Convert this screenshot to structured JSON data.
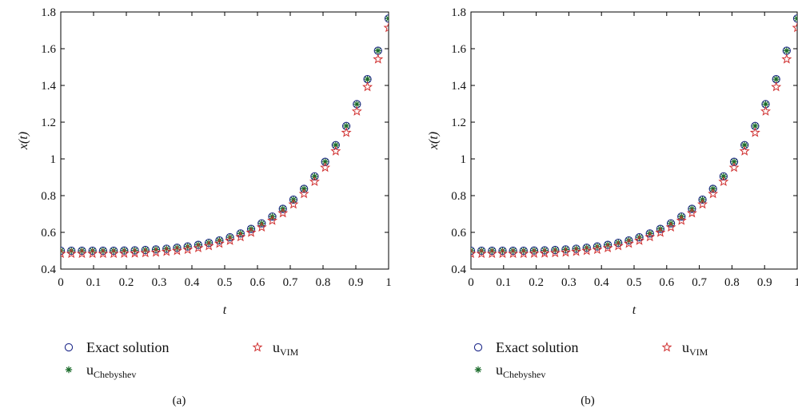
{
  "chart_data": [
    {
      "type": "scatter",
      "panel_label": "(a)",
      "xlabel": "t",
      "ylabel": "x(t)",
      "xlim": [
        0,
        1
      ],
      "ylim": [
        0.4,
        1.8
      ],
      "xticks": [
        0,
        0.1,
        0.2,
        0.3,
        0.4,
        0.5,
        0.6,
        0.7,
        0.8,
        0.9,
        1
      ],
      "xtick_labels": [
        "0",
        "0.1",
        "0.2",
        "0.3",
        "0.4",
        "0.5",
        "0.6",
        "0.7",
        "0.8",
        "0.9",
        "1"
      ],
      "yticks": [
        0.4,
        0.6,
        0.8,
        1,
        1.2,
        1.4,
        1.6,
        1.8
      ],
      "ytick_labels": [
        "0.4",
        "0.6",
        "0.8",
        "1",
        "1.2",
        "1.4",
        "1.6",
        "1.8"
      ],
      "grid": false,
      "legend_position": "below",
      "x": [
        0,
        0.0323,
        0.0645,
        0.0968,
        0.129,
        0.1613,
        0.1935,
        0.2258,
        0.2581,
        0.2903,
        0.3226,
        0.3548,
        0.3871,
        0.4194,
        0.4516,
        0.4839,
        0.5161,
        0.5484,
        0.5806,
        0.6129,
        0.6452,
        0.6774,
        0.7097,
        0.7419,
        0.7742,
        0.8065,
        0.8387,
        0.871,
        0.9032,
        0.9355,
        0.9677,
        1
      ],
      "series": [
        {
          "name": "Exact solution",
          "marker": "circle",
          "color": "#1f2a8a",
          "values": [
            0.5,
            0.5,
            0.5,
            0.5,
            0.5,
            0.5,
            0.501,
            0.502,
            0.504,
            0.507,
            0.511,
            0.516,
            0.523,
            0.532,
            0.543,
            0.556,
            0.573,
            0.594,
            0.619,
            0.649,
            0.686,
            0.728,
            0.778,
            0.837,
            0.905,
            0.984,
            1.075,
            1.179,
            1.298,
            1.434,
            1.589,
            1.764
          ]
        },
        {
          "name": "u_VIM",
          "marker": "star",
          "color": "#d03030",
          "values": [
            0.484,
            0.484,
            0.484,
            0.484,
            0.484,
            0.484,
            0.485,
            0.486,
            0.488,
            0.491,
            0.495,
            0.5,
            0.506,
            0.515,
            0.526,
            0.539,
            0.555,
            0.575,
            0.599,
            0.628,
            0.664,
            0.705,
            0.753,
            0.81,
            0.876,
            0.953,
            1.042,
            1.143,
            1.259,
            1.392,
            1.543,
            1.714
          ]
        },
        {
          "name": "u_Chebyshev",
          "marker": "asterisk",
          "color": "#1a6b2a",
          "values": [
            0.5,
            0.5,
            0.5,
            0.5,
            0.5,
            0.5,
            0.501,
            0.502,
            0.504,
            0.507,
            0.511,
            0.516,
            0.523,
            0.532,
            0.543,
            0.556,
            0.573,
            0.594,
            0.619,
            0.649,
            0.686,
            0.728,
            0.778,
            0.837,
            0.905,
            0.984,
            1.075,
            1.179,
            1.298,
            1.434,
            1.589,
            1.764
          ]
        }
      ]
    },
    {
      "type": "scatter",
      "panel_label": "(b)",
      "xlabel": "t",
      "ylabel": "x(t)",
      "xlim": [
        0,
        1
      ],
      "ylim": [
        0.4,
        1.8
      ],
      "xticks": [
        0,
        0.1,
        0.2,
        0.3,
        0.4,
        0.5,
        0.6,
        0.7,
        0.8,
        0.9,
        1
      ],
      "xtick_labels": [
        "0",
        "0.1",
        "0.2",
        "0.3",
        "0.4",
        "0.5",
        "0.6",
        "0.7",
        "0.8",
        "0.9",
        "1"
      ],
      "yticks": [
        0.4,
        0.6,
        0.8,
        1,
        1.2,
        1.4,
        1.6,
        1.8
      ],
      "ytick_labels": [
        "0.4",
        "0.6",
        "0.8",
        "1",
        "1.2",
        "1.4",
        "1.6",
        "1.8"
      ],
      "grid": false,
      "legend_position": "below",
      "x": [
        0,
        0.0323,
        0.0645,
        0.0968,
        0.129,
        0.1613,
        0.1935,
        0.2258,
        0.2581,
        0.2903,
        0.3226,
        0.3548,
        0.3871,
        0.4194,
        0.4516,
        0.4839,
        0.5161,
        0.5484,
        0.5806,
        0.6129,
        0.6452,
        0.6774,
        0.7097,
        0.7419,
        0.7742,
        0.8065,
        0.8387,
        0.871,
        0.9032,
        0.9355,
        0.9677,
        1
      ],
      "series": [
        {
          "name": "Exact solution",
          "marker": "circle",
          "color": "#1f2a8a",
          "values": [
            0.5,
            0.5,
            0.5,
            0.5,
            0.5,
            0.5,
            0.501,
            0.502,
            0.504,
            0.507,
            0.511,
            0.516,
            0.523,
            0.532,
            0.543,
            0.556,
            0.573,
            0.594,
            0.619,
            0.649,
            0.686,
            0.728,
            0.778,
            0.837,
            0.905,
            0.984,
            1.075,
            1.179,
            1.298,
            1.434,
            1.589,
            1.764
          ]
        },
        {
          "name": "u_VIM",
          "marker": "star",
          "color": "#d03030",
          "values": [
            0.484,
            0.484,
            0.484,
            0.484,
            0.484,
            0.484,
            0.485,
            0.486,
            0.488,
            0.491,
            0.495,
            0.5,
            0.506,
            0.515,
            0.526,
            0.539,
            0.555,
            0.575,
            0.599,
            0.628,
            0.664,
            0.705,
            0.753,
            0.81,
            0.876,
            0.953,
            1.042,
            1.143,
            1.259,
            1.392,
            1.543,
            1.714
          ]
        },
        {
          "name": "u_Chebyshev",
          "marker": "asterisk",
          "color": "#1a6b2a",
          "values": [
            0.5,
            0.5,
            0.5,
            0.5,
            0.5,
            0.5,
            0.501,
            0.502,
            0.504,
            0.507,
            0.511,
            0.516,
            0.523,
            0.532,
            0.543,
            0.556,
            0.573,
            0.594,
            0.619,
            0.649,
            0.686,
            0.728,
            0.778,
            0.837,
            0.905,
            0.984,
            1.075,
            1.179,
            1.298,
            1.434,
            1.589,
            1.764
          ]
        }
      ]
    }
  ],
  "legend": {
    "exact": "Exact solution",
    "vim_base": "u",
    "vim_sub": "VIM",
    "cheb_base": "u",
    "cheb_sub": "Chebyshev"
  }
}
